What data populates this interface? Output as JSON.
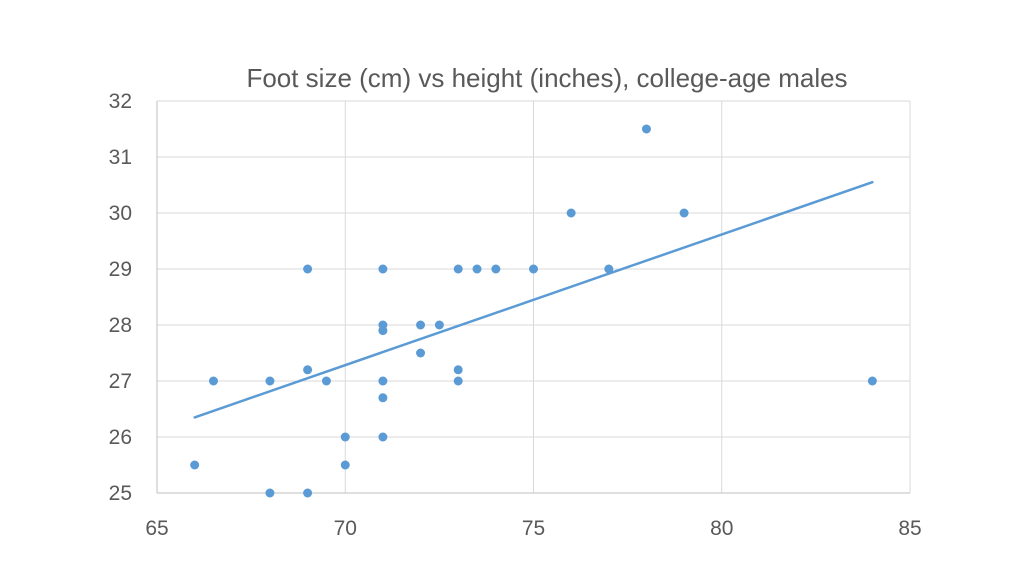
{
  "chart_data": {
    "type": "scatter",
    "title": "Foot size (cm) vs height (inches), college-age males",
    "xlabel": "",
    "ylabel": "",
    "xlim": [
      65,
      85
    ],
    "ylim": [
      25,
      32
    ],
    "x_ticks": [
      65,
      70,
      75,
      80,
      85
    ],
    "y_ticks": [
      25,
      26,
      27,
      28,
      29,
      30,
      31,
      32
    ],
    "grid": true,
    "legend": "none",
    "series": [
      {
        "color": "#5b9bd5",
        "points": [
          [
            66,
            25.5
          ],
          [
            66.5,
            27
          ],
          [
            68,
            27
          ],
          [
            68,
            25
          ],
          [
            69,
            29
          ],
          [
            69,
            27.2
          ],
          [
            69,
            25
          ],
          [
            69.5,
            27
          ],
          [
            70,
            26
          ],
          [
            70,
            25.5
          ],
          [
            71,
            29
          ],
          [
            71,
            28
          ],
          [
            71,
            27.9
          ],
          [
            71,
            27
          ],
          [
            71,
            26.7
          ],
          [
            71,
            26
          ],
          [
            72,
            28
          ],
          [
            72,
            27.5
          ],
          [
            72.5,
            28
          ],
          [
            73,
            29
          ],
          [
            73,
            27.2
          ],
          [
            73,
            27
          ],
          [
            73.5,
            29
          ],
          [
            74,
            29
          ],
          [
            75,
            29
          ],
          [
            76,
            30
          ],
          [
            77,
            29
          ],
          [
            78,
            31.5
          ],
          [
            79,
            30
          ],
          [
            84,
            27
          ]
        ]
      }
    ],
    "trendline": {
      "type": "linear",
      "color": "#5b9bd5",
      "x_start": 66,
      "y_start": 26.35,
      "x_end": 84,
      "y_end": 30.55
    }
  }
}
